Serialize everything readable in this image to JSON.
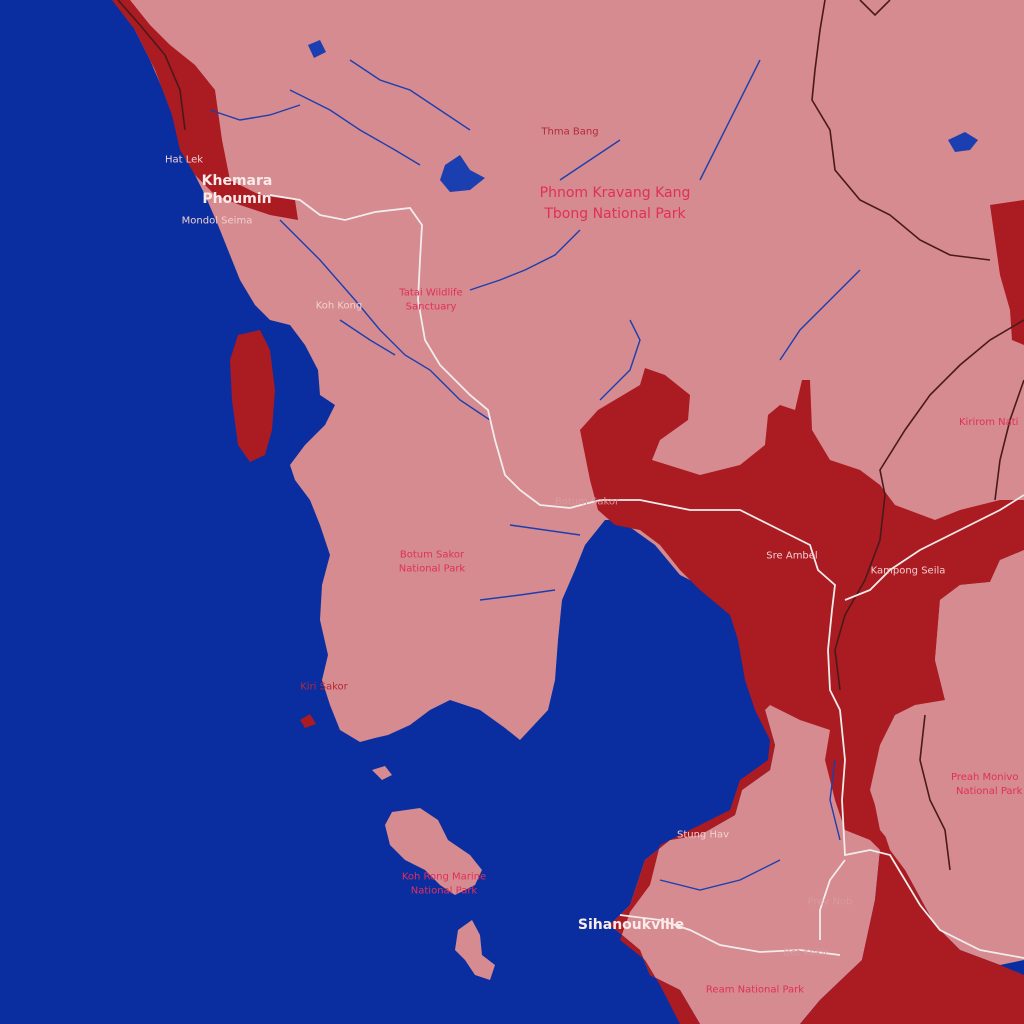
{
  "map": {
    "colors": {
      "water": "#0a2ea0",
      "land_light": "#d58b8f",
      "land_dark": "#aa1b22",
      "road": "#f2ecec",
      "border": "#4a1a1a",
      "river": "#1b3fb0"
    },
    "labels": {
      "hat_lek": "Hat Lek",
      "khemara_line1": "Khemara",
      "khemara_line2": "Phoumin",
      "mondol_seima": "Mondol Seima",
      "koh_kong": "Koh Kong",
      "thma_bang": "Thma Bang",
      "phnom_line1": "Phnom Kravang Kang",
      "phnom_line2": "Tbong National Park",
      "tatai_line1": "Tatai Wildlife",
      "tatai_line2": "Sanctuary",
      "kirirom": "Kirirom Nati",
      "botum_sakor_town": "Botum Sakor",
      "sre_ambel": "Sre Ambel",
      "kampong_seila": "Kampong Seila",
      "botum_park_line1": "Botum Sakor",
      "botum_park_line2": "National Park",
      "kiri_sakor": "Kiri Sakor",
      "preah_line1": "Preah Monivo",
      "preah_line2": "National Park",
      "stung_hav": "Stung Hav",
      "koh_rong_line1": "Koh Rong Marine",
      "koh_rong_line2": "National Park",
      "prey_nob": "Prey Nob",
      "sihanoukville": "Sihanoukville",
      "bet_kokir": "Bet Kokir",
      "ream": "Ream National Park"
    }
  }
}
